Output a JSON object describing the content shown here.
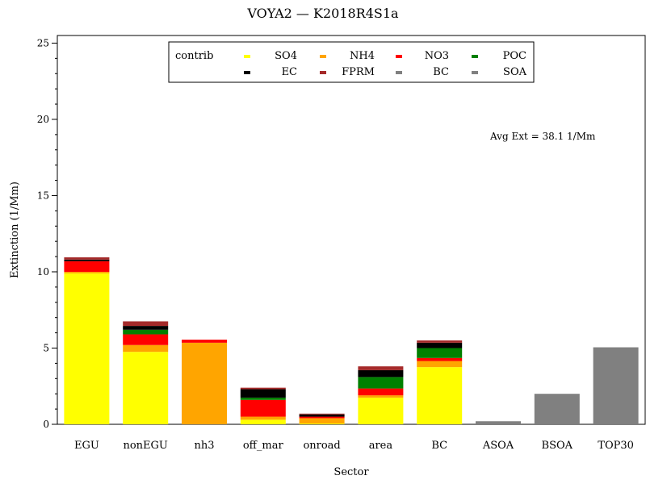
{
  "chart_data": {
    "type": "bar",
    "stacked": true,
    "title": "VOYA2  —  K2018R4S1a",
    "xlabel": "Sector",
    "ylabel": "Extinction  (1/Mm)",
    "ylim": [
      0,
      25.5
    ],
    "yticks": [
      0,
      5,
      10,
      15,
      20,
      25
    ],
    "annotation": "Avg Ext =  38.1 1/Mm",
    "legend_title": "contrib",
    "legend_position": "top-center",
    "categories": [
      "EGU",
      "nonEGU",
      "nh3",
      "off_mar",
      "onroad",
      "area",
      "BC",
      "ASOA",
      "BSOA",
      "TOP30"
    ],
    "series": [
      {
        "name": "SO4",
        "color": "#ffff00",
        "values": [
          9.9,
          4.75,
          0,
          0.3,
          0.05,
          1.75,
          3.75,
          0,
          0,
          0
        ]
      },
      {
        "name": "NH4",
        "color": "#ffa500",
        "values": [
          0.1,
          0.45,
          5.35,
          0.2,
          0.35,
          0.15,
          0.4,
          0,
          0,
          0
        ]
      },
      {
        "name": "NO3",
        "color": "#ff0000",
        "values": [
          0.7,
          0.7,
          0.2,
          1.1,
          0.1,
          0.45,
          0.2,
          0,
          0,
          0
        ]
      },
      {
        "name": "POC",
        "color": "#008000",
        "values": [
          0,
          0.3,
          0,
          0.15,
          0,
          0.75,
          0.65,
          0,
          0,
          0
        ]
      },
      {
        "name": "EC",
        "color": "#000000",
        "values": [
          0.1,
          0.25,
          0,
          0.55,
          0.15,
          0.45,
          0.35,
          0,
          0,
          0
        ]
      },
      {
        "name": "FPRM",
        "color": "#a52a2a",
        "values": [
          0.15,
          0.3,
          0,
          0.1,
          0.05,
          0.25,
          0.15,
          0,
          0,
          0
        ]
      },
      {
        "name": "BC",
        "color": "#808080",
        "values": [
          0,
          0,
          0,
          0,
          0,
          0,
          0,
          0,
          2.0,
          5.05
        ]
      },
      {
        "name": "SOA",
        "color": "#808080",
        "values": [
          0,
          0,
          0,
          0,
          0,
          0,
          0,
          0.2,
          0,
          0
        ]
      }
    ]
  }
}
